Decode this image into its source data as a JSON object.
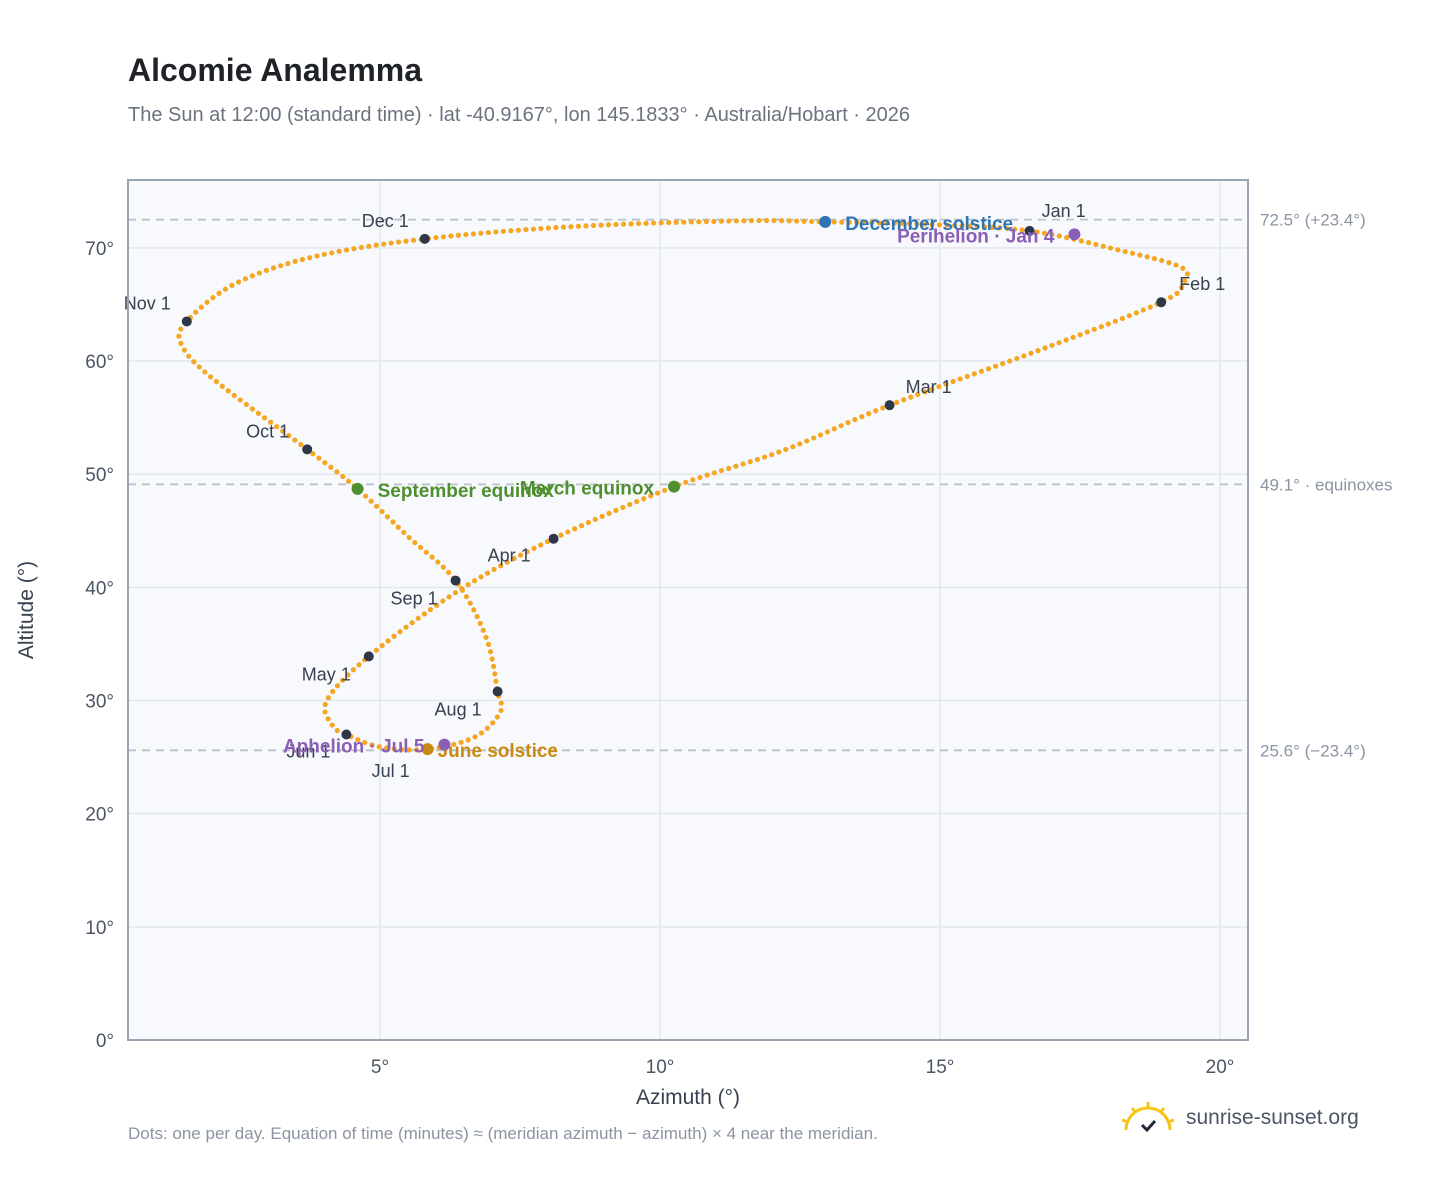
{
  "header": {
    "title": "Alcomie Analemma",
    "subtitle": "The Sun at 12:00 (standard time) · lat -40.9167°, lon 145.1833° · Australia/Hobart · 2026"
  },
  "footer": {
    "note": "Dots: one per day. Equation of time (minutes) ≈ (meridian azimuth − azimuth) × 4 near the meridian.",
    "brand": "sunrise-sunset.org"
  },
  "chart_data": {
    "type": "scatter",
    "xlabel": "Azimuth (°)",
    "ylabel": "Altitude (°)",
    "xlim": [
      0.5,
      20.5
    ],
    "ylim": [
      0,
      76
    ],
    "x_ticks": [
      5,
      10,
      15,
      20
    ],
    "y_ticks": [
      0,
      10,
      20,
      30,
      40,
      50,
      60,
      70
    ],
    "tick_suffix": "°",
    "grid": true,
    "colors": {
      "path": "#f5a623",
      "month_marker": "#2d3748",
      "solstice_dec": "#2f74b5",
      "solstice_jun": "#c98a12",
      "equinox": "#4f8f2f",
      "apsis": "#8a5fb5",
      "reference_line": "#b8c2cc"
    },
    "reference_lines": [
      {
        "y": 72.5,
        "label": "72.5° (+23.4°)"
      },
      {
        "y": 49.1,
        "label": "49.1° · equinoxes"
      },
      {
        "y": 25.6,
        "label": "25.6° (−23.4°)"
      }
    ],
    "month_markers": [
      {
        "label": "Jan 1",
        "x": 16.6,
        "y": 71.5
      },
      {
        "label": "Feb 1",
        "x": 18.95,
        "y": 65.2
      },
      {
        "label": "Mar 1",
        "x": 14.1,
        "y": 56.1
      },
      {
        "label": "Apr 1",
        "x": 8.1,
        "y": 44.3
      },
      {
        "label": "May 1",
        "x": 4.8,
        "y": 33.9
      },
      {
        "label": "Jun 1",
        "x": 4.4,
        "y": 27.0
      },
      {
        "label": "Jul 1",
        "x": 5.85,
        "y": 25.7
      },
      {
        "label": "Aug 1",
        "x": 7.1,
        "y": 30.8
      },
      {
        "label": "Sep 1",
        "x": 6.35,
        "y": 40.6
      },
      {
        "label": "Oct 1",
        "x": 3.7,
        "y": 52.2
      },
      {
        "label": "Nov 1",
        "x": 1.55,
        "y": 63.5
      },
      {
        "label": "Dec 1",
        "x": 5.8,
        "y": 70.8
      }
    ],
    "events": [
      {
        "label": "December solstice",
        "x": 12.95,
        "y": 72.3,
        "kind": "solstice_dec"
      },
      {
        "label": "June solstice",
        "x": 5.85,
        "y": 25.7,
        "kind": "solstice_jun"
      },
      {
        "label": "March equinox",
        "x": 10.25,
        "y": 48.9,
        "kind": "equinox"
      },
      {
        "label": "September equinox",
        "x": 4.6,
        "y": 48.7,
        "kind": "equinox"
      },
      {
        "label": "Perihelion · Jan 4",
        "x": 17.4,
        "y": 71.2,
        "kind": "apsis"
      },
      {
        "label": "Aphelion · Jul 5",
        "x": 6.15,
        "y": 26.1,
        "kind": "apsis"
      }
    ],
    "path_anchors": [
      {
        "x": 16.6,
        "y": 71.5
      },
      {
        "x": 18.2,
        "y": 69.8
      },
      {
        "x": 19.3,
        "y": 68.3
      },
      {
        "x": 19.35,
        "y": 66.9
      },
      {
        "x": 18.95,
        "y": 65.2
      },
      {
        "x": 16.9,
        "y": 61.2
      },
      {
        "x": 14.1,
        "y": 56.1
      },
      {
        "x": 12.2,
        "y": 52.1
      },
      {
        "x": 10.25,
        "y": 48.9
      },
      {
        "x": 8.1,
        "y": 44.3
      },
      {
        "x": 6.4,
        "y": 39.7
      },
      {
        "x": 4.8,
        "y": 33.9
      },
      {
        "x": 4.05,
        "y": 30.0
      },
      {
        "x": 4.15,
        "y": 27.8
      },
      {
        "x": 4.4,
        "y": 27.0
      },
      {
        "x": 5.0,
        "y": 25.9
      },
      {
        "x": 5.85,
        "y": 25.7
      },
      {
        "x": 6.7,
        "y": 26.8
      },
      {
        "x": 7.15,
        "y": 29.0
      },
      {
        "x": 7.1,
        "y": 30.8
      },
      {
        "x": 6.9,
        "y": 35.5
      },
      {
        "x": 6.35,
        "y": 40.6
      },
      {
        "x": 5.5,
        "y": 44.5
      },
      {
        "x": 4.6,
        "y": 48.7
      },
      {
        "x": 3.7,
        "y": 52.2
      },
      {
        "x": 2.0,
        "y": 58.5
      },
      {
        "x": 1.45,
        "y": 61.5
      },
      {
        "x": 1.55,
        "y": 63.5
      },
      {
        "x": 2.4,
        "y": 66.8
      },
      {
        "x": 3.8,
        "y": 69.2
      },
      {
        "x": 5.8,
        "y": 70.8
      },
      {
        "x": 8.5,
        "y": 71.9
      },
      {
        "x": 11.5,
        "y": 72.4
      },
      {
        "x": 12.95,
        "y": 72.3
      },
      {
        "x": 14.7,
        "y": 72.1
      },
      {
        "x": 16.6,
        "y": 71.5
      }
    ]
  }
}
